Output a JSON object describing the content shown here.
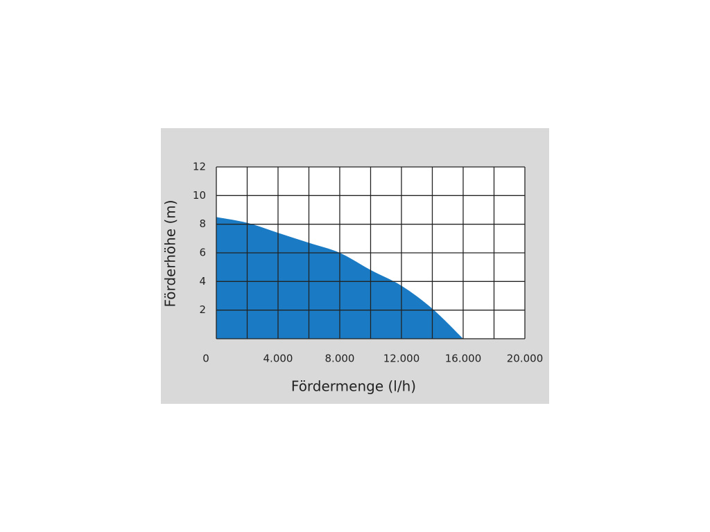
{
  "chart_data": {
    "type": "area",
    "x_label": "Fördermenge (l/h)",
    "y_label": "Förderhöhe (m)",
    "x": [
      0,
      2000,
      4000,
      6000,
      8000,
      10000,
      12000,
      14000,
      16000
    ],
    "values": [
      8.5,
      8.1,
      7.4,
      6.7,
      6.0,
      4.8,
      3.7,
      2.1,
      0
    ],
    "color": "#1a7bc4",
    "xlim": [
      0,
      20000
    ],
    "ylim": [
      0,
      12
    ],
    "xticks": [
      0,
      {
        "value": 4000,
        "label": "4.000"
      },
      {
        "value": 8000,
        "label": "8.000"
      },
      {
        "value": 12000,
        "label": "12.000"
      },
      {
        "value": 16000,
        "label": "16.000"
      },
      {
        "value": 20000,
        "label": "20.000"
      }
    ],
    "yticks": [
      2,
      4,
      6,
      8,
      10,
      12
    ],
    "xgrid": [
      0,
      2000,
      4000,
      6000,
      8000,
      10000,
      12000,
      14000,
      16000,
      18000,
      20000
    ],
    "ygrid": [
      0,
      2,
      4,
      6,
      8,
      10,
      12
    ],
    "grid": true
  }
}
